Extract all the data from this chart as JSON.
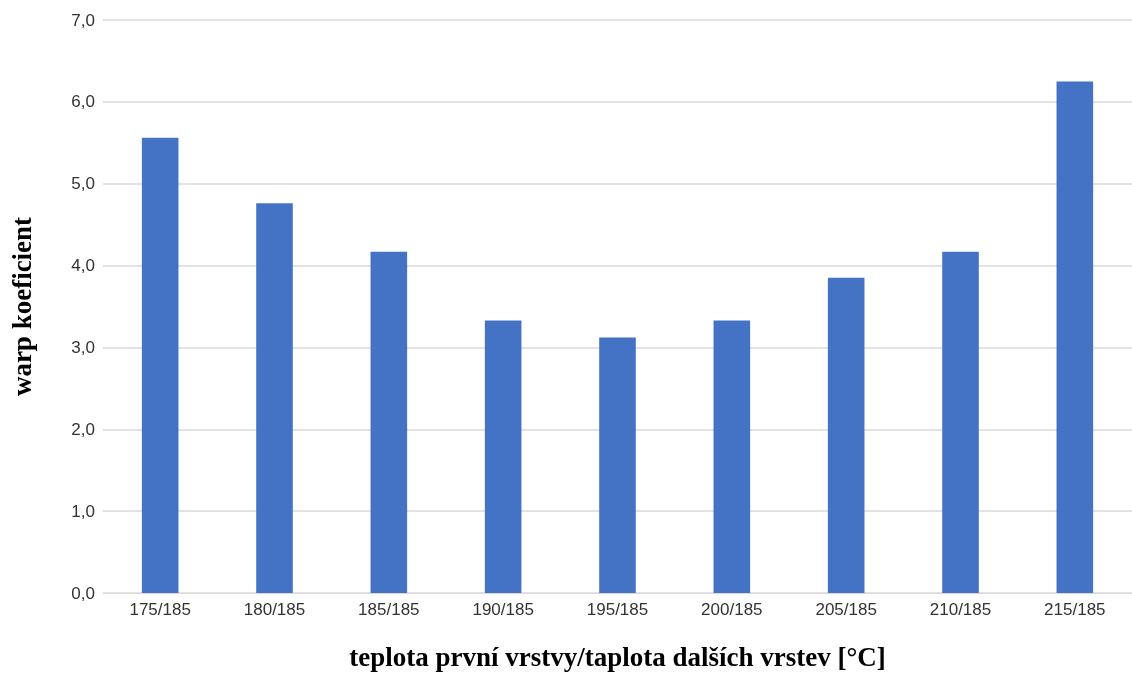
{
  "chart_data": {
    "type": "bar",
    "xlabel": "teplota první vrstvy/taplota dalších vrstev [°C]",
    "ylabel": "warp koeficient",
    "categories": [
      "175/185",
      "180/185",
      "185/185",
      "190/185",
      "195/185",
      "200/185",
      "205/185",
      "210/185",
      "215/185"
    ],
    "values": [
      5.56,
      4.76,
      4.17,
      3.33,
      3.12,
      3.33,
      3.85,
      4.17,
      6.25
    ],
    "color": "#4472c4",
    "ylim": [
      0,
      7
    ],
    "yticks": [
      {
        "value": 0,
        "label": "0,0"
      },
      {
        "value": 1,
        "label": "1,0"
      },
      {
        "value": 2,
        "label": "2,0"
      },
      {
        "value": 3,
        "label": "3,0"
      },
      {
        "value": 4,
        "label": "4,0"
      },
      {
        "value": 5,
        "label": "5,0"
      },
      {
        "value": 6,
        "label": "6,0"
      },
      {
        "value": 7,
        "label": "7,0"
      }
    ],
    "grid": "y"
  }
}
